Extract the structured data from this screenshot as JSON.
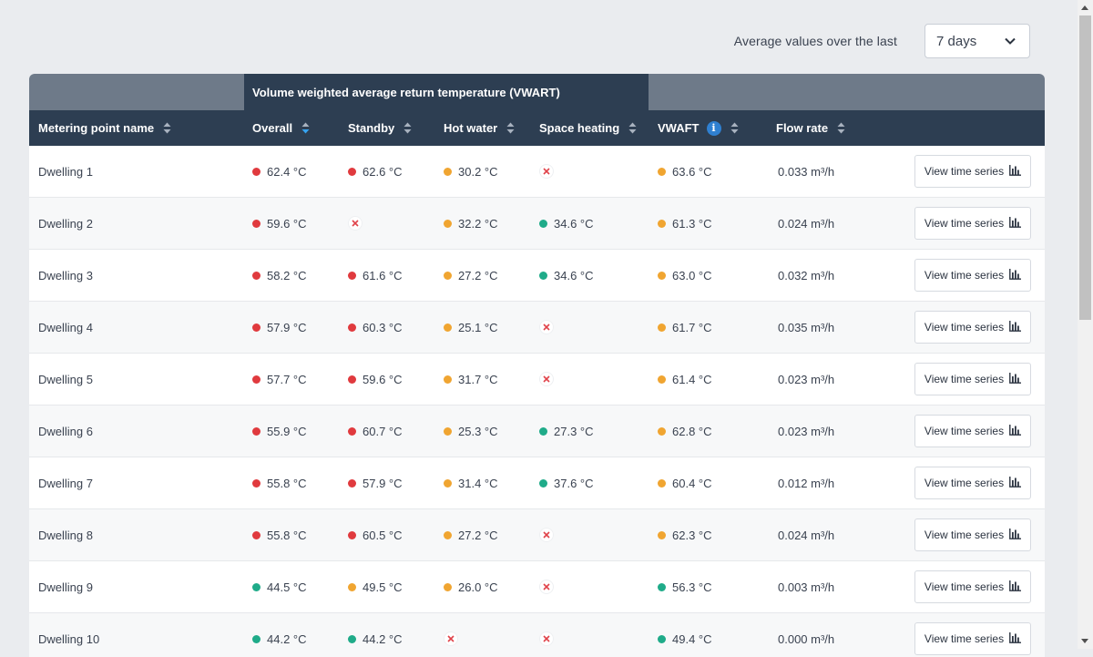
{
  "filter": {
    "label": "Average values over the last",
    "selected": "7 days"
  },
  "table": {
    "group_header": "Volume weighted average return temperature (VWART)",
    "columns": {
      "name": "Metering point name",
      "overall": "Overall",
      "standby": "Standby",
      "hot_water": "Hot water",
      "space_heating": "Space heating",
      "vwaft": "VWAFT",
      "flow_rate": "Flow rate"
    },
    "sorted_column": "overall",
    "button_label": "View time series",
    "colors": {
      "red": "#e03a3e",
      "orange": "#f0a531",
      "green": "#1fab89",
      "x_icon": "#e0434a",
      "header_bg": "#2d3e52",
      "group_bg": "#6e7a89"
    },
    "rows": [
      {
        "name": "Dwelling 1",
        "overall": {
          "v": "62.4 °C",
          "s": "red"
        },
        "standby": {
          "v": "62.6 °C",
          "s": "red"
        },
        "hot_water": {
          "v": "30.2 °C",
          "s": "orange"
        },
        "space_heating": {
          "v": null,
          "s": "none"
        },
        "vwaft": {
          "v": "63.6 °C",
          "s": "orange"
        },
        "flow": "0.033 m³/h"
      },
      {
        "name": "Dwelling 2",
        "overall": {
          "v": "59.6 °C",
          "s": "red"
        },
        "standby": {
          "v": null,
          "s": "none"
        },
        "hot_water": {
          "v": "32.2 °C",
          "s": "orange"
        },
        "space_heating": {
          "v": "34.6 °C",
          "s": "green"
        },
        "vwaft": {
          "v": "61.3 °C",
          "s": "orange"
        },
        "flow": "0.024 m³/h"
      },
      {
        "name": "Dwelling 3",
        "overall": {
          "v": "58.2 °C",
          "s": "red"
        },
        "standby": {
          "v": "61.6 °C",
          "s": "red"
        },
        "hot_water": {
          "v": "27.2 °C",
          "s": "orange"
        },
        "space_heating": {
          "v": "34.6 °C",
          "s": "green"
        },
        "vwaft": {
          "v": "63.0 °C",
          "s": "orange"
        },
        "flow": "0.032 m³/h"
      },
      {
        "name": "Dwelling 4",
        "overall": {
          "v": "57.9 °C",
          "s": "red"
        },
        "standby": {
          "v": "60.3 °C",
          "s": "red"
        },
        "hot_water": {
          "v": "25.1 °C",
          "s": "orange"
        },
        "space_heating": {
          "v": null,
          "s": "none"
        },
        "vwaft": {
          "v": "61.7 °C",
          "s": "orange"
        },
        "flow": "0.035 m³/h"
      },
      {
        "name": "Dwelling 5",
        "overall": {
          "v": "57.7 °C",
          "s": "red"
        },
        "standby": {
          "v": "59.6 °C",
          "s": "red"
        },
        "hot_water": {
          "v": "31.7 °C",
          "s": "orange"
        },
        "space_heating": {
          "v": null,
          "s": "none"
        },
        "vwaft": {
          "v": "61.4 °C",
          "s": "orange"
        },
        "flow": "0.023 m³/h"
      },
      {
        "name": "Dwelling 6",
        "overall": {
          "v": "55.9 °C",
          "s": "red"
        },
        "standby": {
          "v": "60.7 °C",
          "s": "red"
        },
        "hot_water": {
          "v": "25.3 °C",
          "s": "orange"
        },
        "space_heating": {
          "v": "27.3 °C",
          "s": "green"
        },
        "vwaft": {
          "v": "62.8 °C",
          "s": "orange"
        },
        "flow": "0.023 m³/h"
      },
      {
        "name": "Dwelling 7",
        "overall": {
          "v": "55.8 °C",
          "s": "red"
        },
        "standby": {
          "v": "57.9 °C",
          "s": "red"
        },
        "hot_water": {
          "v": "31.4 °C",
          "s": "orange"
        },
        "space_heating": {
          "v": "37.6 °C",
          "s": "green"
        },
        "vwaft": {
          "v": "60.4 °C",
          "s": "orange"
        },
        "flow": "0.012 m³/h"
      },
      {
        "name": "Dwelling 8",
        "overall": {
          "v": "55.8 °C",
          "s": "red"
        },
        "standby": {
          "v": "60.5 °C",
          "s": "red"
        },
        "hot_water": {
          "v": "27.2 °C",
          "s": "orange"
        },
        "space_heating": {
          "v": null,
          "s": "none"
        },
        "vwaft": {
          "v": "62.3 °C",
          "s": "orange"
        },
        "flow": "0.024 m³/h"
      },
      {
        "name": "Dwelling 9",
        "overall": {
          "v": "44.5 °C",
          "s": "green"
        },
        "standby": {
          "v": "49.5 °C",
          "s": "orange"
        },
        "hot_water": {
          "v": "26.0 °C",
          "s": "orange"
        },
        "space_heating": {
          "v": null,
          "s": "none"
        },
        "vwaft": {
          "v": "56.3 °C",
          "s": "green"
        },
        "flow": "0.003 m³/h"
      },
      {
        "name": "Dwelling 10",
        "overall": {
          "v": "44.2 °C",
          "s": "green"
        },
        "standby": {
          "v": "44.2 °C",
          "s": "green"
        },
        "hot_water": {
          "v": null,
          "s": "none"
        },
        "space_heating": {
          "v": null,
          "s": "none"
        },
        "vwaft": {
          "v": "49.4 °C",
          "s": "green"
        },
        "flow": "0.000 m³/h"
      }
    ]
  }
}
